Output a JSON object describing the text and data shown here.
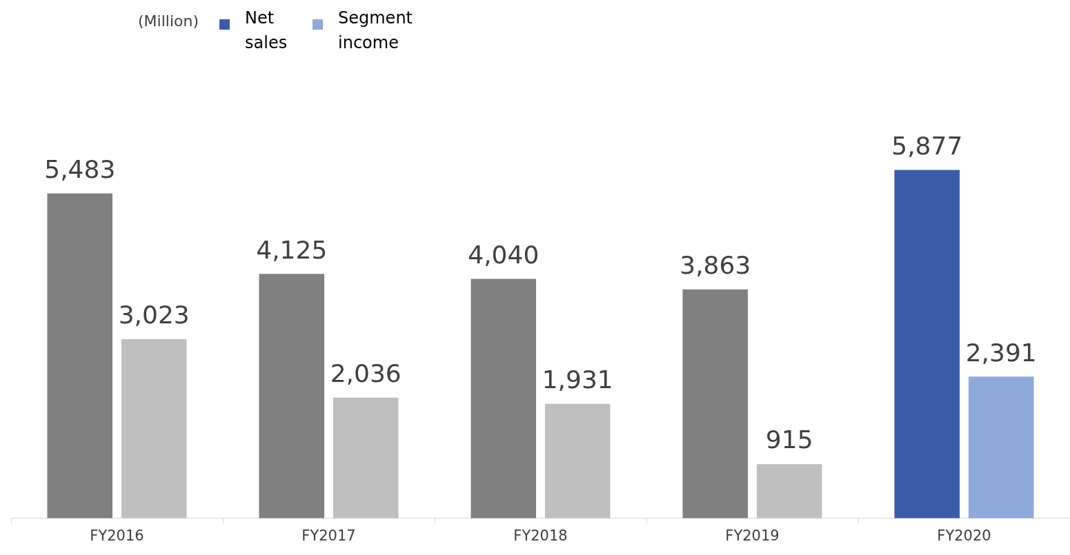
{
  "chart_data": {
    "type": "bar",
    "categories": [
      "FY2016",
      "FY2017",
      "FY2018",
      "FY2019",
      "FY2020"
    ],
    "legend": "top left",
    "annotations": [
      "(Million)"
    ],
    "series": [
      {
        "name": "Net sales",
        "color": "#3a5ca8",
        "colors": [
          "#808080",
          "#808080",
          "#808080",
          "#808080",
          "#3a5ca8"
        ],
        "values": [
          5483,
          4125,
          4040,
          3863,
          5877
        ],
        "value_labels": [
          "5,483",
          "4,125",
          "4,040",
          "3,863",
          "5,877"
        ]
      },
      {
        "name": "Segment income",
        "color": "#8eaadb",
        "colors": [
          "#bfbfbf",
          "#bfbfbf",
          "#bfbfbf",
          "#bfbfbf",
          "#8eaadb"
        ],
        "values": [
          3023,
          2036,
          1931,
          915,
          2391
        ],
        "value_labels": [
          "3,023",
          "2,036",
          "1,931",
          "915",
          "2,391"
        ]
      }
    ]
  }
}
